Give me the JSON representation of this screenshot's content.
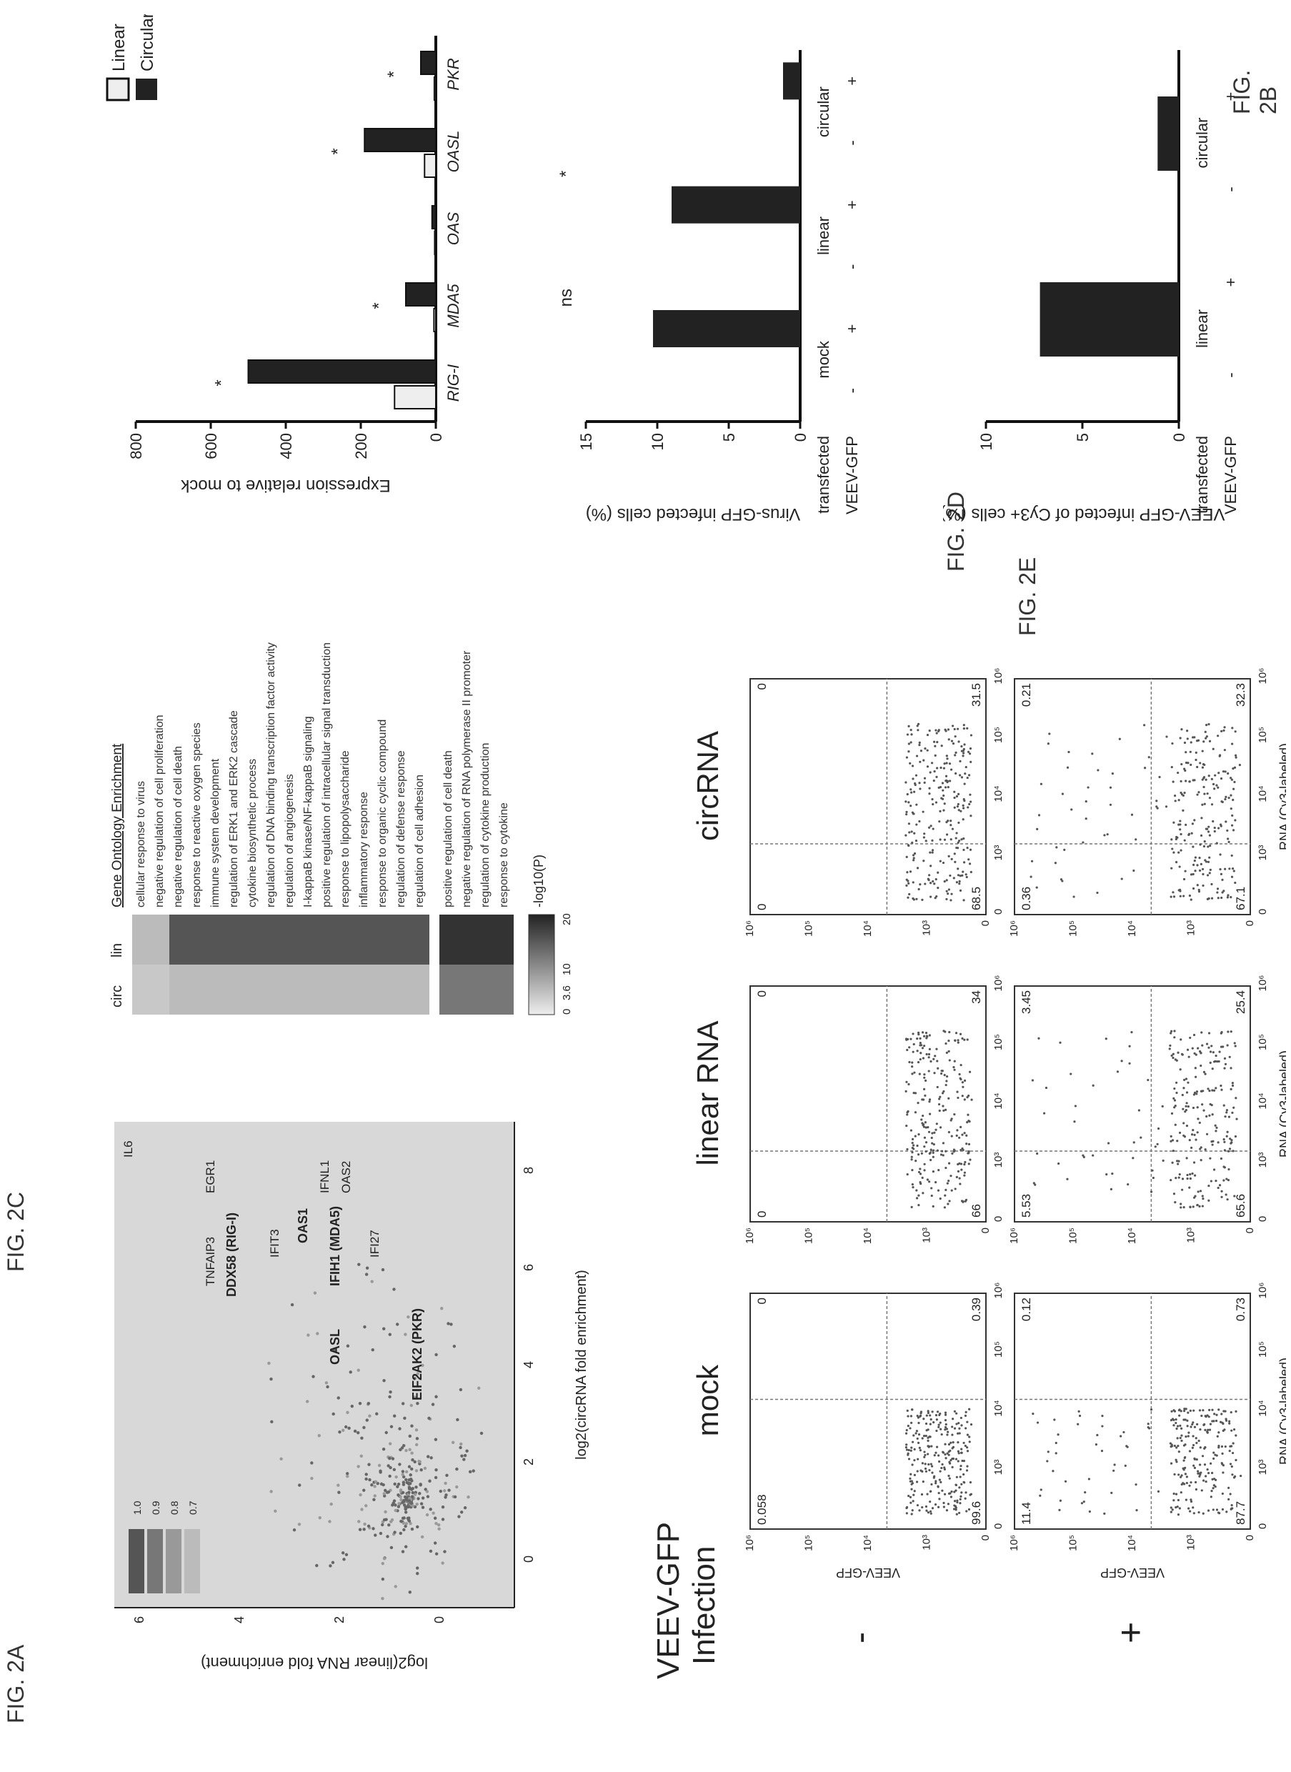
{
  "figure_labels": {
    "fig2a": "FIG. 2A",
    "fig2b": "FIG. 2B",
    "fig2c": "FIG. 2C",
    "fig2d": "FIG. 2D",
    "fig2e": "FIG. 2E"
  },
  "panel_a": {
    "ylabel": "log2(linear RNA fold enrichment)",
    "xlabel": "log2(circRNA fold enrichment)",
    "legend": [
      "1.0",
      "0.9",
      "0.8",
      "0.7"
    ],
    "genes": [
      {
        "label": "IL6",
        "bold": false
      },
      {
        "label": "TNFAIP3",
        "bold": false
      },
      {
        "label": "EGR1",
        "bold": false
      },
      {
        "label": "DDX58 (RIG-I)",
        "bold": true
      },
      {
        "label": "IFIT3",
        "bold": false
      },
      {
        "label": "OAS1",
        "bold": true
      },
      {
        "label": "IFNL1",
        "bold": false
      },
      {
        "label": "IFIH1 (MDA5)",
        "bold": true
      },
      {
        "label": "OAS2",
        "bold": false
      },
      {
        "label": "OASL",
        "bold": true
      },
      {
        "label": "IFI27",
        "bold": false
      },
      {
        "label": "EIF2AK2 (PKR)",
        "bold": true
      }
    ]
  },
  "panel_b_heatmap": {
    "col_circ": "circ",
    "col_lin": "lin",
    "title": "Gene Ontology Enrichment",
    "terms": [
      "cellular response to virus",
      "negative regulation of cell proliferation",
      "negative regulation of cell death",
      "response to reactive oxygen species",
      "immune system development",
      "regulation of ERK1 and ERK2 cascade",
      "cytokine biosynthetic process",
      "regulation of DNA binding transcription factor activity",
      "regulation of angiogenesis",
      "I-kappaB kinase/NF-kappaB signaling",
      "positive regulation of intracellular signal transduction",
      "response to lipopolysaccharide",
      "inflammatory response",
      "response to organic cyclic compound",
      "regulation of defense response",
      "regulation of cell adhesion",
      "positive regulation of cell death",
      "negative regulation of RNA polymerase II promoter",
      "regulation of cytokine production",
      "response to cytokine"
    ],
    "scale_label": "-log10(P)",
    "scale_ticks": [
      "0",
      "3.6",
      "10",
      "20"
    ]
  },
  "panel_c": {
    "title_line1": "VEEV-GFP",
    "title_line2": "Infection",
    "col_titles": [
      "mock",
      "linear RNA",
      "circRNA"
    ],
    "row_signs": [
      "-",
      "+"
    ],
    "ylabel": "VEEV-GFP",
    "xlabel": "RNA (Cy3-labeled)",
    "ticks": [
      "0",
      "10³",
      "10⁴",
      "10⁵",
      "10⁶"
    ],
    "quadrants": [
      {
        "ul": "0.058",
        "ur": "0",
        "ll": "99.6",
        "lr": "0.39"
      },
      {
        "ul": "0",
        "ur": "0",
        "ll": "66",
        "lr": "34"
      },
      {
        "ul": "0",
        "ur": "0",
        "ll": "68.5",
        "lr": "31.5"
      },
      {
        "ul": "11.4",
        "ur": "0.12",
        "ll": "87.7",
        "lr": "0.73"
      },
      {
        "ul": "5.53",
        "ur": "3.45",
        "ll": "65.6",
        "lr": "25.4"
      },
      {
        "ul": "0.36",
        "ur": "0.21",
        "ll": "67.1",
        "lr": "32.3"
      }
    ]
  },
  "chart_data": [
    {
      "type": "bar",
      "panel": "FIG. 2B",
      "categories": [
        "RIG-I",
        "MDA5",
        "OAS",
        "OASL",
        "PKR"
      ],
      "series": [
        {
          "name": "Linear",
          "values": [
            110,
            5,
            3,
            30,
            4
          ]
        },
        {
          "name": "Circular",
          "values": [
            500,
            80,
            10,
            190,
            40
          ]
        }
      ],
      "ylabel": "Expression relative to mock",
      "ylim": [
        0,
        800
      ],
      "yticks": [
        "0",
        "200",
        "400",
        "600",
        "800"
      ],
      "significance": [
        "*",
        "*",
        "*",
        "*"
      ]
    },
    {
      "type": "bar",
      "panel": "FIG. 2D",
      "categories": [
        "mock -",
        "mock +",
        "linear -",
        "linear +",
        "circular -",
        "circular +"
      ],
      "values": [
        0,
        10.3,
        0,
        9.0,
        0,
        1.2
      ],
      "ylabel": "Virus-GFP infected cells (%)",
      "ylim": [
        0,
        15
      ],
      "yticks": [
        "0",
        "5",
        "10",
        "15"
      ],
      "row_labels": [
        "transfected",
        "VEEV-GFP"
      ],
      "group_labels": [
        "mock",
        "linear",
        "circular"
      ],
      "signs": [
        "-",
        "+",
        "-",
        "+",
        "-",
        "+"
      ],
      "significance": [
        "ns",
        "*"
      ]
    },
    {
      "type": "bar",
      "panel": "FIG. 2E",
      "categories": [
        "linear",
        "circular"
      ],
      "values": [
        7.2,
        1.1
      ],
      "ylabel": "VEEV-GFP infected of Cy3+ cells (%)",
      "ylim": [
        0,
        10
      ],
      "yticks": [
        "0",
        "5",
        "10"
      ],
      "row_labels": [
        "transfected",
        "VEEV-GFP"
      ],
      "signs": [
        "-",
        "+",
        "-",
        "+"
      ]
    }
  ]
}
